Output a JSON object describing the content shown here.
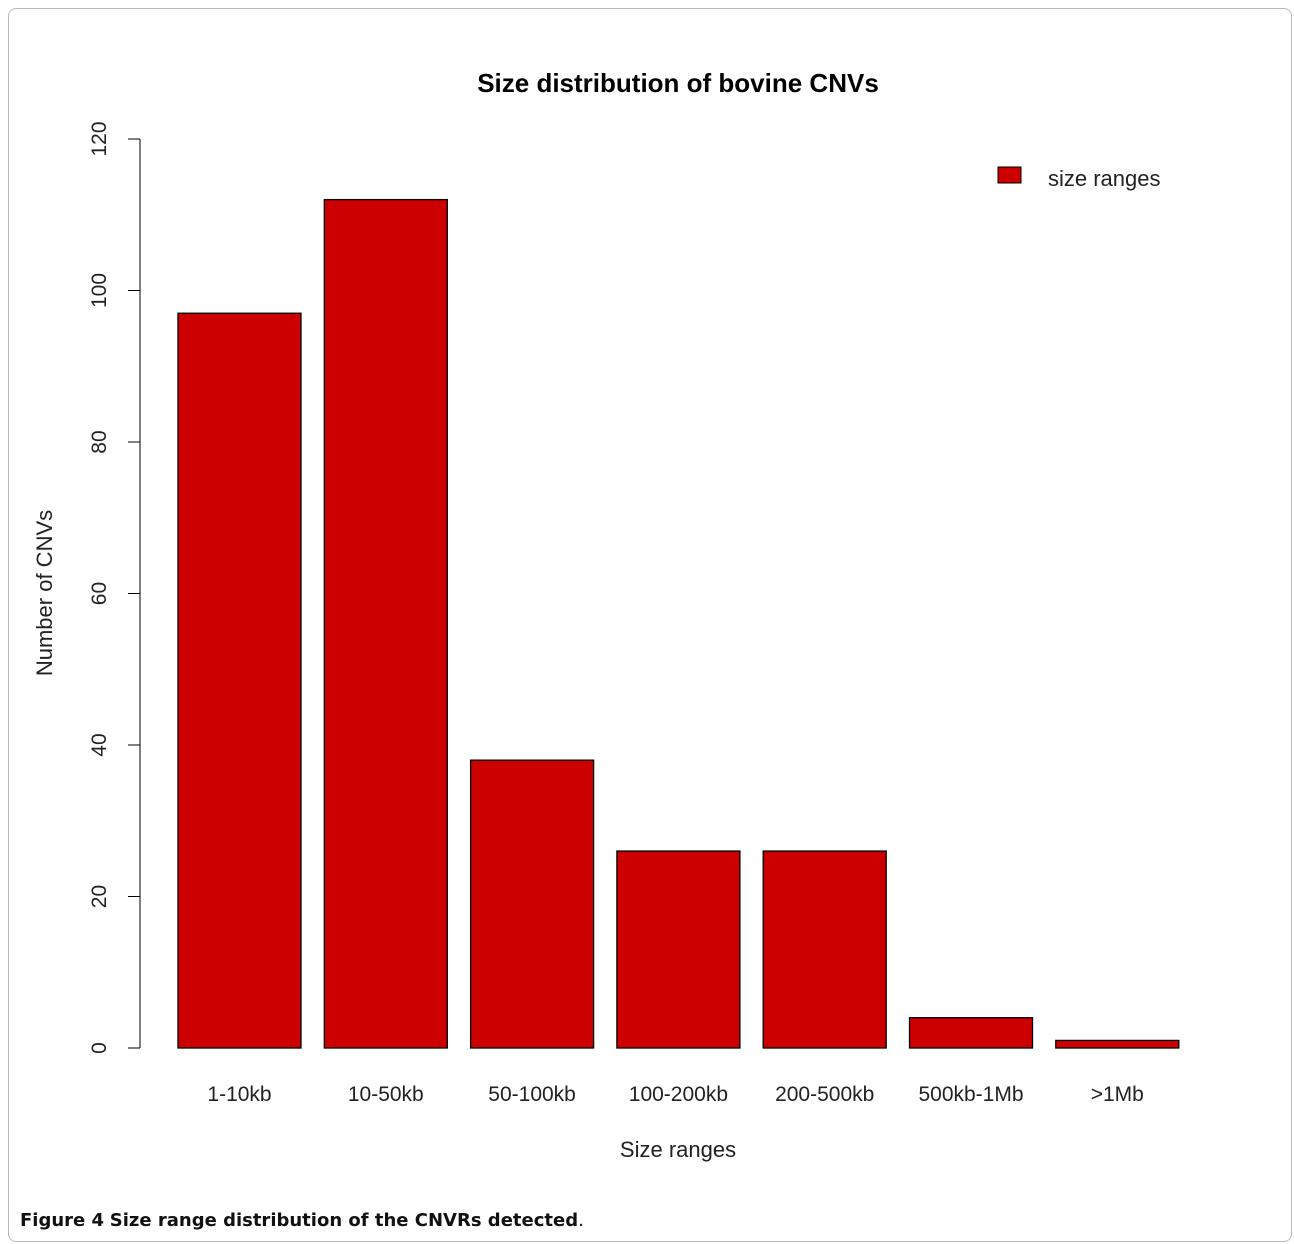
{
  "chart_data": {
    "type": "bar",
    "title": "Size distribution of bovine CNVs",
    "xlabel": "Size ranges",
    "ylabel": "Number of CNVs",
    "categories": [
      "1-10kb",
      "10-50kb",
      "50-100kb",
      "100-200kb",
      "200-500kb",
      "500kb-1Mb",
      ">1Mb"
    ],
    "series": [
      {
        "name": "size ranges",
        "values": [
          97,
          112,
          38,
          26,
          26,
          4,
          1
        ]
      }
    ],
    "ylim": [
      0,
      120
    ],
    "yticks": [
      0,
      20,
      40,
      60,
      80,
      100,
      120
    ],
    "grid": false,
    "legend_position": "top-right",
    "bar_color": "#cc0000"
  },
  "caption": {
    "label": "Figure 4",
    "text": "Size range distribution of the CNVRs detected",
    "end": "."
  }
}
